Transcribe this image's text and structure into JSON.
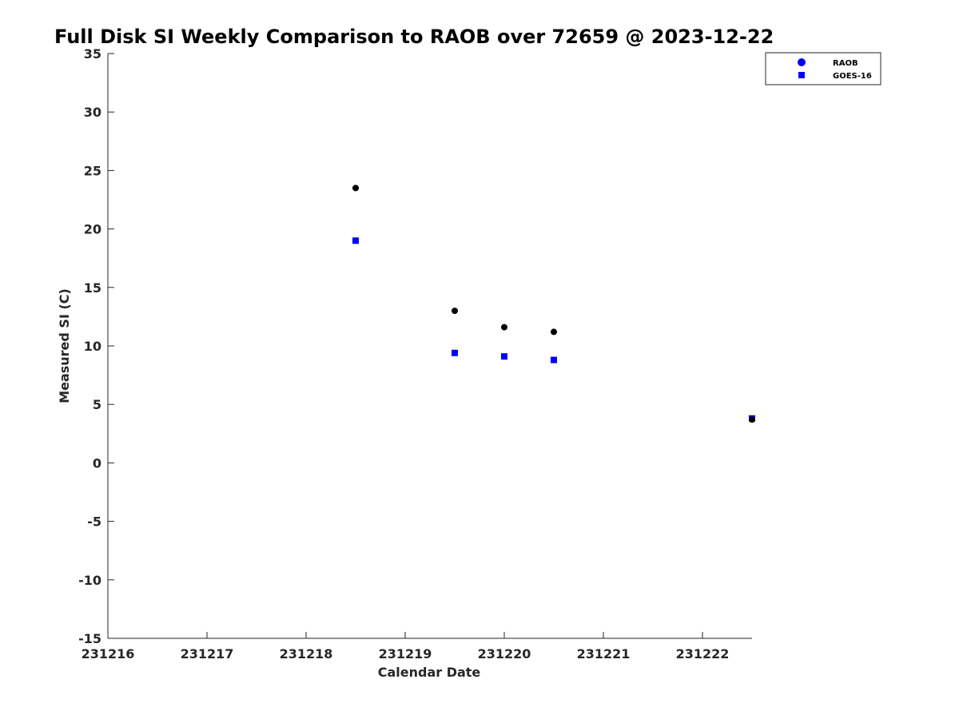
{
  "chart_data": {
    "type": "scatter",
    "title": "Full Disk SI Weekly Comparison to RAOB over 72659 @ 2023-12-22",
    "xlabel": "Calendar Date",
    "ylabel": "Measured SI (C)",
    "xlim": [
      231216,
      231222.5
    ],
    "ylim": [
      -15,
      35
    ],
    "x_ticks": [
      231216,
      231217,
      231218,
      231219,
      231220,
      231221,
      231222
    ],
    "x_tick_labels": [
      "231216",
      "231217",
      "231218",
      "231219",
      "231220",
      "231221",
      "231222"
    ],
    "y_ticks": [
      -15,
      -10,
      -5,
      0,
      5,
      10,
      15,
      20,
      25,
      30,
      35
    ],
    "y_tick_labels": [
      "-15",
      "-10",
      "-5",
      "0",
      "5",
      "10",
      "15",
      "20",
      "25",
      "30",
      "35"
    ],
    "legend_position": "top-right",
    "grid": false,
    "series": [
      {
        "name": "RAOB",
        "marker": "circle",
        "legend_color": "#0000ff",
        "point_color": "#000000",
        "points": [
          {
            "x": 231218.5,
            "y": 23.5
          },
          {
            "x": 231219.5,
            "y": 13.0
          },
          {
            "x": 231220.0,
            "y": 11.6
          },
          {
            "x": 231220.5,
            "y": 11.2
          },
          {
            "x": 231222.5,
            "y": 3.7
          }
        ]
      },
      {
        "name": "GOES-16",
        "marker": "square",
        "legend_color": "#0000ff",
        "point_color": "#0000ff",
        "points": [
          {
            "x": 231218.5,
            "y": 19.0
          },
          {
            "x": 231219.5,
            "y": 9.4
          },
          {
            "x": 231220.0,
            "y": 9.1
          },
          {
            "x": 231220.5,
            "y": 8.8
          },
          {
            "x": 231222.5,
            "y": 3.8
          }
        ]
      }
    ]
  }
}
